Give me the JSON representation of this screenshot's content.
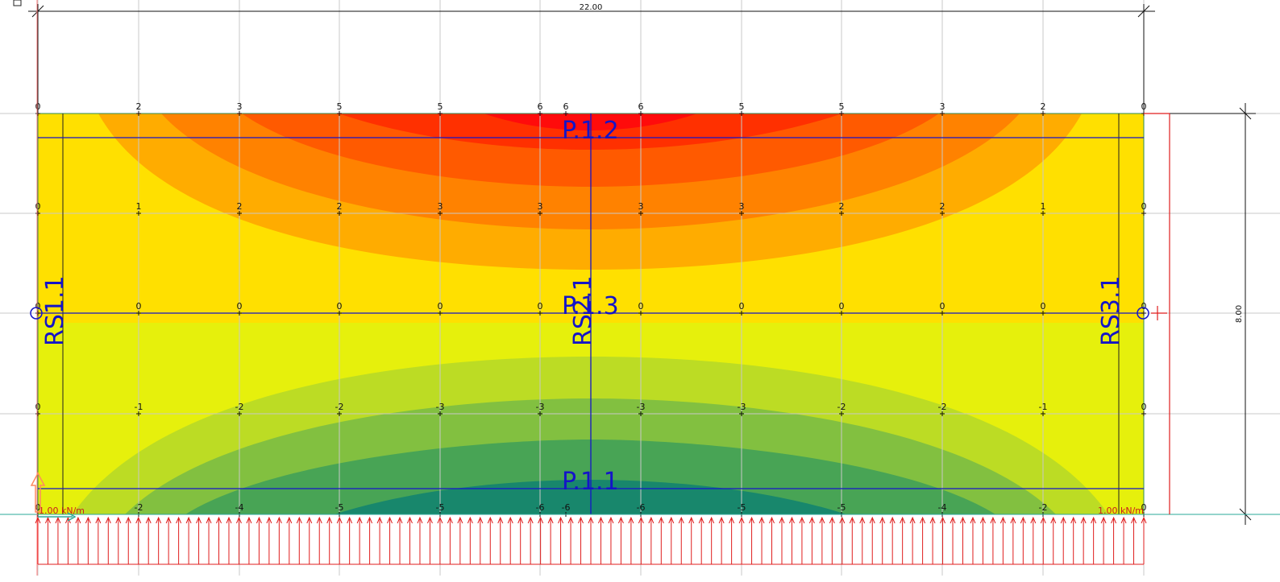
{
  "colors": {
    "band_red_dark": "#ff0b0b",
    "band_red": "#ff3000",
    "band_orange_red": "#ff5a00",
    "band_orange": "#ff8200",
    "band_amber": "#ffac00",
    "band_yellow": "#ffe000",
    "band_lime_yellow": "#e6f00c",
    "band_lime": "#bcdc24",
    "band_green_light": "#82c040",
    "band_green": "#48a455",
    "band_teal": "#18876c",
    "grid": "#c8c8c8",
    "section_line": "#1414c8",
    "load_arrow": "#e01e1e",
    "origin_axis": "#ff5a5a"
  },
  "dimensions": {
    "width_label": "22.00",
    "height_label": "8.00"
  },
  "contour_labels": {
    "row_top": [
      "0",
      "2",
      "3",
      "5",
      "5",
      "6",
      "6",
      "6",
      "5",
      "5",
      "3",
      "2",
      "0"
    ],
    "row_2": [
      "0",
      "1",
      "2",
      "2",
      "3",
      "3",
      "3",
      "3",
      "2",
      "2",
      "1",
      "0"
    ],
    "row_mid": [
      "0",
      "0",
      "0",
      "0",
      "0",
      "0",
      "0",
      "0",
      "0",
      "0",
      "0",
      "0"
    ],
    "row_4": [
      "0",
      "-1",
      "-2",
      "-2",
      "-3",
      "-3",
      "-3",
      "-3",
      "-2",
      "-2",
      "-1",
      "0"
    ],
    "row_bottom": [
      "0",
      "-2",
      "-4",
      "-5",
      "-5",
      "-6",
      "-6",
      "-6",
      "-5",
      "-5",
      "-4",
      "-2",
      "0"
    ]
  },
  "section_labels": {
    "p11": "P.1.1",
    "p12": "P.1.2",
    "p13": "P.1.3",
    "rs11": "RS1.1",
    "rs21": "RS2.1",
    "rs31": "RS3.1"
  },
  "loads": {
    "left_label": "1.00 kN/m",
    "right_label": "1.00 kN/m"
  }
}
